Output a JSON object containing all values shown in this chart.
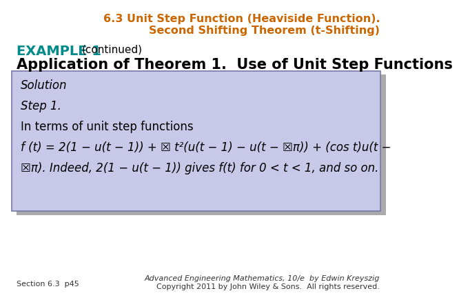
{
  "title_line1": "6.3 Unit Step Function (Heaviside Function).",
  "title_line2": "Second Shifting Theorem (t-Shifting)",
  "title_color": "#CC6600",
  "title_fontsize": 11.5,
  "example_label": "EXAMPLE 1",
  "example_continued": "(continued)",
  "example_color": "#008B8B",
  "example_fontsize": 14,
  "continued_fontsize": 11,
  "heading": "Application of Theorem 1.  Use of Unit Step Functions",
  "heading_fontsize": 15,
  "heading_color": "#000000",
  "box_bg_color": "#C8C8E8",
  "box_edge_color": "#7777AA",
  "shadow_color": "#AAAAAA",
  "solution_line1": "Solution",
  "solution_line2": "Step 1.",
  "solution_line3": "In terms of unit step functions",
  "solution_line4": "f (t) = 2(1 − u(t − 1)) + ☒ t²(u(t − 1) − u(t − ☒π)) + (cos t)u(t −",
  "solution_line5": "☒π). Indeed, 2(1 − u(t − 1)) gives f(t) for 0 < t < 1, and so on.",
  "solution_fontsize": 12,
  "footer_left": "Section 6.3  p45",
  "footer_right_line1": "Advanced Engineering Mathematics, 10/e  by Edwin Kreyszig",
  "footer_right_line2": "Copyright 2011 by John Wiley & Sons.  All rights reserved.",
  "footer_fontsize": 8,
  "bg_color": "#FFFFFF"
}
